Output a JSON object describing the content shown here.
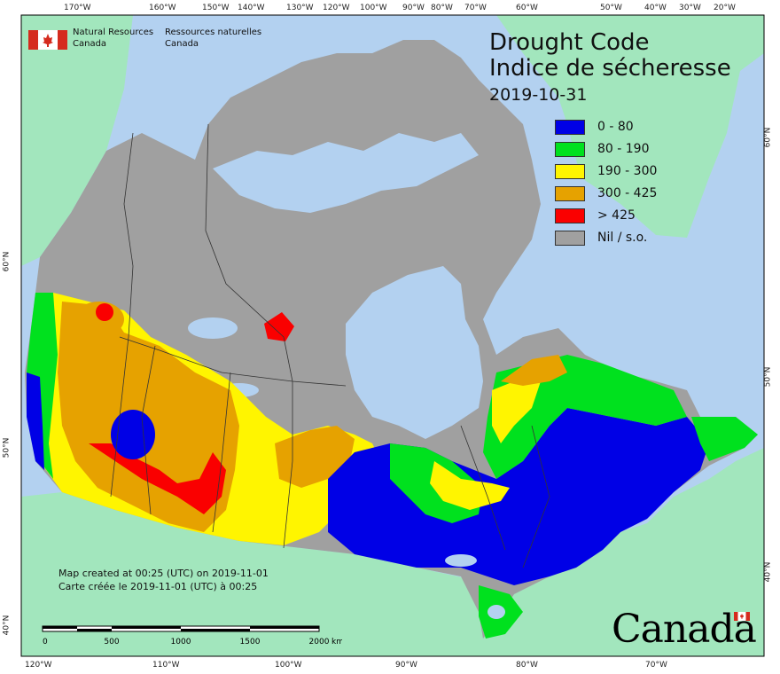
{
  "agency": {
    "name_en": [
      "Natural Resources",
      "Canada"
    ],
    "name_fr": [
      "Ressources naturelles",
      "Canada"
    ]
  },
  "map": {
    "title_en": "Drought Code",
    "title_fr": "Indice de sécheresse",
    "date": "2019-10-31"
  },
  "legend": [
    {
      "label": "0 - 80",
      "color": "#0000e6"
    },
    {
      "label": "80 - 190",
      "color": "#00e11e"
    },
    {
      "label": "190 - 300",
      "color": "#fff500"
    },
    {
      "label": "300 - 425",
      "color": "#e6a200"
    },
    {
      "label": "> 425",
      "color": "#fa0000"
    },
    {
      "label": "Nil / s.o.",
      "color": "#a0a0a0"
    }
  ],
  "credits": {
    "created_en": "Map created at 00:25 (UTC) on 2019-11-01",
    "created_fr": "Carte créée le 2019-11-01 (UTC) à 00:25"
  },
  "scale": {
    "labels": [
      "0",
      "500",
      "1000",
      "1500",
      "2000"
    ],
    "unit": "km"
  },
  "graticule": {
    "top": [
      "170°W",
      "160°W",
      "150°W",
      "140°W",
      "130°W",
      "120°W",
      "100°W",
      "90°W",
      "80°W",
      "70°W",
      "60°W",
      "50°W",
      "40°W",
      "30°W",
      "20°W"
    ],
    "bottom": [
      "120°W",
      "110°W",
      "100°W",
      "90°W",
      "80°W",
      "70°W"
    ],
    "left": [
      "60°N",
      "50°N",
      "40°N"
    ],
    "right": [
      "60°N",
      "50°N",
      "40°N"
    ]
  },
  "wordmark": "Canada",
  "colors": {
    "ocean": "#b3d1f0",
    "land_other": "#a2e6bd",
    "nil": "#a0a0a0"
  }
}
